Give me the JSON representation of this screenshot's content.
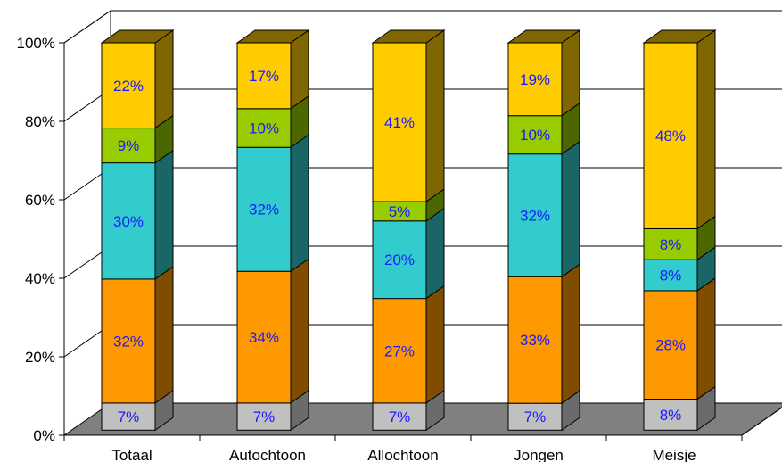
{
  "chart_data": {
    "type": "bar",
    "stacked": true,
    "percent_stacked": true,
    "three_d": true,
    "categories": [
      "Totaal",
      "Autochtoon",
      "Allochtoon",
      "Jongen",
      "Meisje"
    ],
    "series": [
      {
        "values": [
          7,
          7,
          7,
          7,
          8
        ],
        "labels": [
          "7%",
          "7%",
          "7%",
          "7%",
          "8%"
        ],
        "color": "#c0c0c0",
        "side": "#6b6b6b",
        "top": "#dcdcdc"
      },
      {
        "values": [
          32,
          34,
          27,
          33,
          28
        ],
        "labels": [
          "32%",
          "34%",
          "27%",
          "33%",
          "28%"
        ],
        "color": "#ff9900",
        "side": "#7f4c00",
        "top": "#ffbb55"
      },
      {
        "values": [
          30,
          32,
          20,
          32,
          8
        ],
        "labels": [
          "30%",
          "32%",
          "20%",
          "32%",
          "8%"
        ],
        "color": "#33cccc",
        "side": "#1a6666",
        "top": "#7fe0e0"
      },
      {
        "values": [
          9,
          10,
          5,
          10,
          8
        ],
        "labels": [
          "9%",
          "10%",
          "5%",
          "10%",
          "8%"
        ],
        "color": "#99cc00",
        "side": "#4c6600",
        "top": "#c2e066"
      },
      {
        "values": [
          22,
          17,
          41,
          19,
          48
        ],
        "labels": [
          "22%",
          "17%",
          "41%",
          "19%",
          "48%"
        ],
        "color": "#ffcc00",
        "side": "#806600",
        "top": "#ffe066"
      }
    ],
    "yticks": [
      "0%",
      "20%",
      "40%",
      "60%",
      "80%",
      "100%"
    ],
    "ylim": [
      0,
      100
    ],
    "grid": true,
    "legend": "none",
    "title": "",
    "xlabel": "",
    "ylabel": ""
  }
}
